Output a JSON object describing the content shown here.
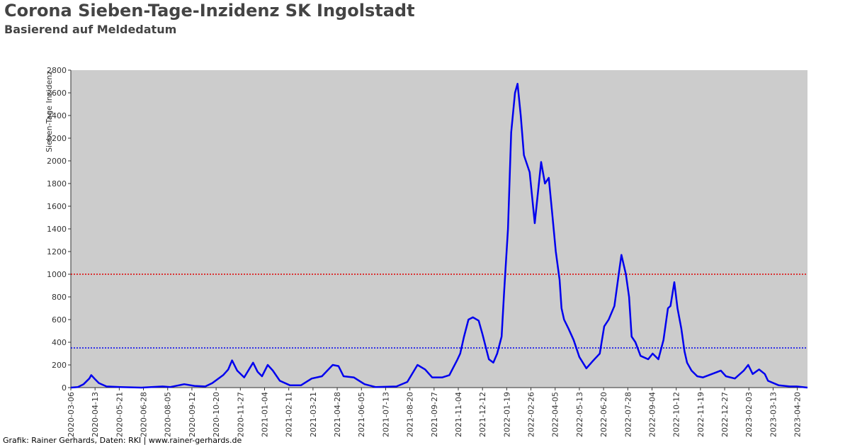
{
  "chart_data": {
    "type": "line",
    "title": "Corona Sieben-Tage-Inzidenz SK Ingolstadt",
    "subtitle": "Basierend auf Meldedatum",
    "y_label": "Sieben-Tage Inzidenz",
    "source": "Grafik: Rainer Gerhards, Daten: RKI | www.rainer-gerhards.de",
    "x": [
      "2020-03-06",
      "2020-03-17",
      "2020-03-26",
      "2020-04-04",
      "2020-04-07",
      "2020-04-12",
      "2020-04-19",
      "2020-05-01",
      "2020-05-23",
      "2020-06-25",
      "2020-07-28",
      "2020-08-09",
      "2020-08-31",
      "2020-09-16",
      "2020-10-03",
      "2020-10-14",
      "2020-10-31",
      "2020-11-08",
      "2020-11-14",
      "2020-11-22",
      "2020-12-03",
      "2020-12-17",
      "2020-12-24",
      "2020-12-31",
      "2021-01-09",
      "2021-01-17",
      "2021-01-28",
      "2021-02-13",
      "2021-03-02",
      "2021-03-19",
      "2021-04-04",
      "2021-04-21",
      "2021-04-30",
      "2021-05-08",
      "2021-05-24",
      "2021-06-10",
      "2021-06-27",
      "2021-07-30",
      "2021-08-16",
      "2021-09-01",
      "2021-09-13",
      "2021-09-24",
      "2021-10-10",
      "2021-10-21",
      "2021-11-02",
      "2021-11-07",
      "2021-11-13",
      "2021-11-20",
      "2021-11-27",
      "2021-12-06",
      "2021-12-12",
      "2021-12-22",
      "2021-12-29",
      "2022-01-04",
      "2022-01-11",
      "2022-01-15",
      "2022-01-21",
      "2022-01-26",
      "2022-02-01",
      "2022-02-05",
      "2022-02-10",
      "2022-02-15",
      "2022-02-24",
      "2022-03-04",
      "2022-03-14",
      "2022-03-20",
      "2022-03-26",
      "2022-04-01",
      "2022-04-06",
      "2022-04-12",
      "2022-04-15",
      "2022-04-19",
      "2022-04-26",
      "2022-05-04",
      "2022-05-13",
      "2022-05-24",
      "2022-06-04",
      "2022-06-14",
      "2022-06-21",
      "2022-06-28",
      "2022-07-07",
      "2022-07-15",
      "2022-07-18",
      "2022-07-25",
      "2022-07-30",
      "2022-08-03",
      "2022-08-09",
      "2022-08-17",
      "2022-08-29",
      "2022-09-05",
      "2022-09-14",
      "2022-09-22",
      "2022-09-29",
      "2022-10-03",
      "2022-10-09",
      "2022-10-14",
      "2022-10-20",
      "2022-10-25",
      "2022-10-29",
      "2022-11-05",
      "2022-11-14",
      "2022-11-23",
      "2022-12-07",
      "2022-12-21",
      "2022-12-29",
      "2023-01-12",
      "2023-01-26",
      "2023-02-02",
      "2023-02-09",
      "2023-02-19",
      "2023-02-28",
      "2023-03-05",
      "2023-03-22",
      "2023-04-08",
      "2023-04-19",
      "2023-05-06"
    ],
    "series": [
      {
        "name": "Sieben-Tage Inzidenz",
        "color": "#0000ee",
        "values": [
          0,
          5,
          30,
          80,
          110,
          80,
          40,
          10,
          5,
          0,
          10,
          5,
          30,
          15,
          10,
          40,
          110,
          160,
          240,
          150,
          90,
          220,
          140,
          100,
          200,
          150,
          60,
          20,
          20,
          80,
          100,
          200,
          190,
          100,
          90,
          30,
          5,
          10,
          50,
          200,
          160,
          90,
          90,
          110,
          240,
          300,
          450,
          600,
          620,
          590,
          470,
          250,
          220,
          300,
          450,
          850,
          1400,
          2250,
          2600,
          2680,
          2400,
          2050,
          1900,
          1450,
          1990,
          1800,
          1850,
          1500,
          1200,
          950,
          700,
          600,
          520,
          420,
          270,
          170,
          240,
          300,
          540,
          600,
          720,
          1050,
          1170,
          1000,
          800,
          450,
          400,
          280,
          250,
          300,
          250,
          420,
          700,
          720,
          930,
          700,
          520,
          320,
          220,
          150,
          100,
          90,
          120,
          150,
          100,
          80,
          150,
          200,
          120,
          160,
          120,
          60,
          20,
          10,
          10,
          0
        ]
      }
    ],
    "xlim": [
      "2020-03-06",
      "2023-05-06"
    ],
    "xticks": [
      "2020-03-06",
      "2020-04-13",
      "2020-05-21",
      "2020-06-28",
      "2020-08-05",
      "2020-09-12",
      "2020-10-20",
      "2020-11-27",
      "2021-01-04",
      "2021-02-11",
      "2021-03-21",
      "2021-04-28",
      "2021-06-05",
      "2021-07-13",
      "2021-08-20",
      "2021-09-27",
      "2021-11-04",
      "2021-12-12",
      "2022-01-19",
      "2022-02-26",
      "2022-04-05",
      "2022-05-13",
      "2022-06-20",
      "2022-07-28",
      "2022-09-04",
      "2022-10-12",
      "2022-11-19",
      "2022-12-27",
      "2023-02-03",
      "2023-03-13",
      "2023-04-20"
    ],
    "ylim": [
      0,
      2800
    ],
    "yticks": [
      0,
      200,
      400,
      600,
      800,
      1000,
      1200,
      1400,
      1600,
      1800,
      2000,
      2200,
      2400,
      2600,
      2800
    ],
    "reference_lines": [
      {
        "value": 1000,
        "color": "#dd0000"
      },
      {
        "value": 350,
        "color": "#0000ee"
      }
    ],
    "plot_background": "#cccccc"
  }
}
